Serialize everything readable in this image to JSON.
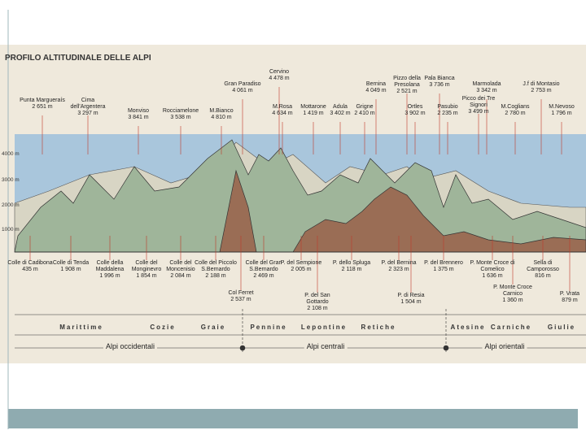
{
  "title": "PROFILO ALTITUDINALE DELLE ALPI",
  "altitude_labels": [
    "4000 m",
    "3000 m",
    "2000 m",
    "1000 m"
  ],
  "peaks": [
    {
      "name": "Punta Margueraís",
      "altitude": "2 651 m"
    },
    {
      "name": "Cima dell'Argentera",
      "altitude": "3 297 m"
    },
    {
      "name": "Monviso",
      "altitude": "3 841 m"
    },
    {
      "name": "Rocciamelone",
      "altitude": "3 538 m"
    },
    {
      "name": "M.Bianco",
      "altitude": "4 810 m"
    },
    {
      "name": "Gran Paradiso",
      "altitude": "4 061 m"
    },
    {
      "name": "Cervino",
      "altitude": "4 478 m"
    },
    {
      "name": "M.Rosa",
      "altitude": "4 634 m"
    },
    {
      "name": "Mottarone",
      "altitude": "1 419 m"
    },
    {
      "name": "Adula",
      "altitude": "3 402 m"
    },
    {
      "name": "Grigne",
      "altitude": "2 410 m"
    },
    {
      "name": "Bernina",
      "altitude": "4 049 m"
    },
    {
      "name": "Pizzo della Presolana",
      "altitude": "2 521 m"
    },
    {
      "name": "Ortles",
      "altitude": "3 902 m"
    },
    {
      "name": "Pala Bianca",
      "altitude": "3 736 m"
    },
    {
      "name": "Pasubio",
      "altitude": "2 235 m"
    },
    {
      "name": "Marmolada",
      "altitude": "3 342 m"
    },
    {
      "name": "Picco dei Tre Signori",
      "altitude": "3 499 m"
    },
    {
      "name": "M.Coglians",
      "altitude": "2 780 m"
    },
    {
      "name": "J.f di Montasio",
      "altitude": "2 753 m"
    },
    {
      "name": "M.Nevoso",
      "altitude": "1 796 m"
    }
  ],
  "passes": [
    {
      "name": "Colle di Cadibona",
      "altitude": "435 m"
    },
    {
      "name": "Colle di Tenda",
      "altitude": "1 908 m"
    },
    {
      "name": "Colle della Maddalena",
      "altitude": "1 996 m"
    },
    {
      "name": "Colle del Monginevro",
      "altitude": "1 854 m"
    },
    {
      "name": "Colle del Moncenisio",
      "altitude": "2 084 m"
    },
    {
      "name": "Colle del Piccolo S.Bernardo",
      "altitude": "2 188 m"
    },
    {
      "name": "Col Ferret",
      "altitude": "2 537 m"
    },
    {
      "name": "Colle del Gran S.Bernardo",
      "altitude": "2 469 m"
    },
    {
      "name": "P. del Sempione",
      "altitude": "2 005 m"
    },
    {
      "name": "P. del San Gottardo",
      "altitude": "2 108 m"
    },
    {
      "name": "P. dello Spluga",
      "altitude": "2 118 m"
    },
    {
      "name": "P. del Bernina",
      "altitude": "2 323 m"
    },
    {
      "name": "P. di Resia",
      "altitude": "1 504 m"
    },
    {
      "name": "P. del Brennero",
      "altitude": "1 375 m"
    },
    {
      "name": "P. Monte Croce di Comelico",
      "altitude": "1 636 m"
    },
    {
      "name": "P. Monte Croce Carnico",
      "altitude": "1 360 m"
    },
    {
      "name": "Sella di Camporosso",
      "altitude": "816 m"
    },
    {
      "name": "P. Vrata",
      "altitude": "879 m"
    }
  ],
  "sections": [
    "Marittime",
    "Cozie",
    "Graie",
    "Pennine",
    "Lepontine",
    "Retiche",
    "Atesine",
    "Carniche",
    "Giulie"
  ],
  "groups": [
    "Alpi occidentali",
    "Alpi centrali",
    "Alpi orientali"
  ]
}
